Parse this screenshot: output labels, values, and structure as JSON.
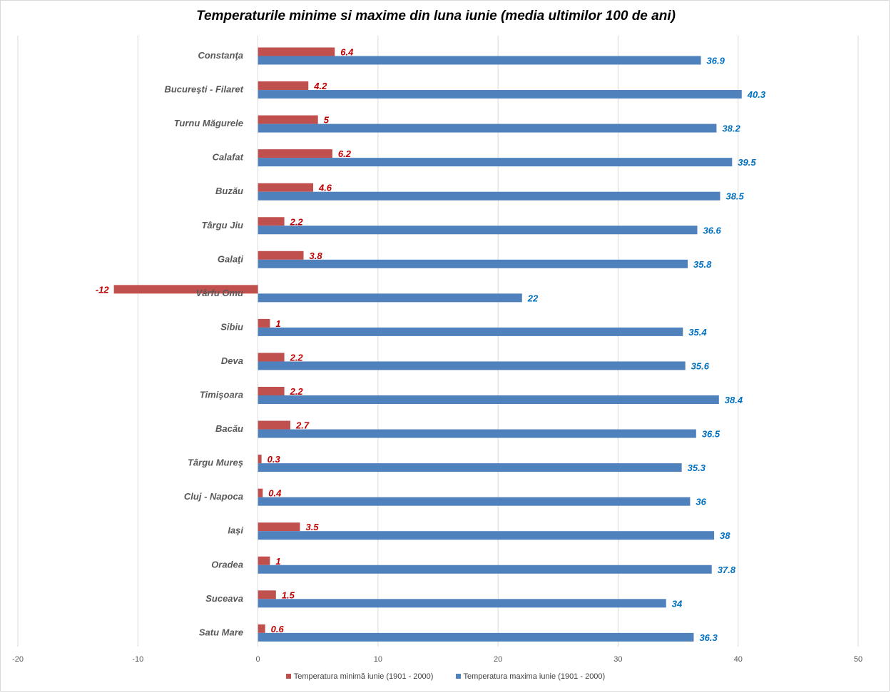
{
  "chart_data": {
    "type": "bar",
    "orientation": "horizontal",
    "title": "Temperaturile  minime si maxime din luna iunie (media ultimilor 100 de ani)",
    "categories": [
      "Constanţa",
      "Bucureşti - Filaret",
      "Turnu Măgurele",
      "Calafat",
      "Buzău",
      "Târgu Jiu",
      "Galaţi",
      "Vârfu Omu",
      "Sibiu",
      "Deva",
      "Timişoara",
      "Bacău",
      "Târgu Mureş",
      "Cluj - Napoca",
      "Iaşi",
      "Oradea",
      "Suceava",
      "Satu Mare"
    ],
    "series": [
      {
        "name": "Temperatura minimă iunie (1901 - 2000)",
        "color": "#c0504d",
        "label_color": "#c00000",
        "values": [
          6.4,
          4.2,
          5,
          6.2,
          4.6,
          2.2,
          3.8,
          -12,
          1,
          2.2,
          2.2,
          2.7,
          0.3,
          0.4,
          3.5,
          1,
          1.5,
          0.6
        ]
      },
      {
        "name": "Temperatura maxima iunie (1901 - 2000)",
        "color": "#4f81bd",
        "label_color": "#0070c0",
        "values": [
          36.9,
          40.3,
          38.2,
          39.5,
          38.5,
          36.6,
          35.8,
          22,
          35.4,
          35.6,
          38.4,
          36.5,
          35.3,
          36,
          38,
          37.8,
          34,
          36.3
        ]
      }
    ],
    "xlim": [
      -20,
      50
    ],
    "xticks": [
      -20,
      -10,
      0,
      10,
      20,
      30,
      40,
      50
    ],
    "grid": true,
    "legend_position": "bottom"
  }
}
